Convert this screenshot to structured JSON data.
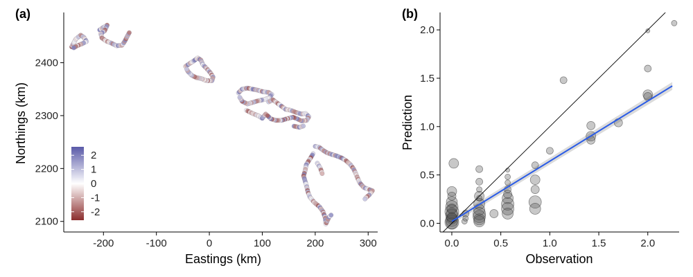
{
  "panel_a": {
    "label": "(a)",
    "chart_data": {
      "type": "scatter",
      "xlabel": "Eastings (km)",
      "ylabel": "Northings (km)",
      "xlim": [
        -275,
        318
      ],
      "ylim": [
        2080,
        2495
      ],
      "xticks": [
        -200,
        -100,
        0,
        100,
        200,
        300
      ],
      "xtick_labels": [
        "-200",
        "-100",
        "0",
        "100",
        "200",
        "300"
      ],
      "yticks": [
        2100,
        2200,
        2300,
        2400
      ],
      "ytick_labels": [
        "2100",
        "2200",
        "2300",
        "2400"
      ],
      "grid": false,
      "legend": {
        "position": "bottom-left",
        "ticks": [
          2,
          1,
          0,
          -1,
          -2
        ],
        "tick_labels": [
          "2",
          "1",
          "0",
          "-1",
          "-2"
        ],
        "range": [
          -2.6,
          2.6
        ],
        "low_color": "#8b2d2d",
        "mid_color": "#ffffff",
        "high_color": "#5a5aa8"
      },
      "tracks": [
        {
          "points": [
            [
              -260,
              2430
            ],
            [
              -252,
              2445
            ],
            [
              -243,
              2452
            ],
            [
              -237,
              2448
            ],
            [
              -232,
              2440
            ],
            [
              -240,
              2436
            ],
            [
              -250,
              2432
            ],
            [
              -258,
              2427
            ]
          ]
        },
        {
          "points": [
            [
              -207,
              2462
            ],
            [
              -200,
              2467
            ],
            [
              -193,
              2471
            ],
            [
              -198,
              2460
            ],
            [
              -205,
              2455
            ],
            [
              -203,
              2447
            ],
            [
              -195,
              2441
            ],
            [
              -185,
              2437
            ],
            [
              -175,
              2432
            ],
            [
              -165,
              2433
            ],
            [
              -160,
              2440
            ],
            [
              -155,
              2450
            ],
            [
              -150,
              2459
            ]
          ]
        },
        {
          "points": [
            [
              -45,
              2393
            ],
            [
              -38,
              2398
            ],
            [
              -30,
              2403
            ],
            [
              -22,
              2409
            ],
            [
              -16,
              2405
            ],
            [
              -12,
              2396
            ],
            [
              -5,
              2389
            ],
            [
              2,
              2381
            ],
            [
              7,
              2373
            ],
            [
              5,
              2366
            ],
            [
              -5,
              2366
            ],
            [
              -15,
              2370
            ],
            [
              -25,
              2372
            ],
            [
              -33,
              2376
            ],
            [
              -40,
              2383
            ],
            [
              -44,
              2390
            ]
          ]
        },
        {
          "points": [
            [
              55,
              2343
            ],
            [
              62,
              2350
            ],
            [
              72,
              2352
            ],
            [
              82,
              2350
            ],
            [
              92,
              2348
            ],
            [
              102,
              2345
            ],
            [
              112,
              2344
            ],
            [
              118,
              2340
            ],
            [
              112,
              2333
            ],
            [
              102,
              2330
            ],
            [
              92,
              2328
            ],
            [
              82,
              2325
            ],
            [
              72,
              2322
            ],
            [
              62,
              2327
            ],
            [
              56,
              2337
            ],
            [
              70,
              2310
            ],
            [
              82,
              2304
            ],
            [
              92,
              2300
            ],
            [
              100,
              2295
            ],
            [
              108,
              2305
            ]
          ]
        },
        {
          "points": [
            [
              112,
              2326
            ],
            [
              120,
              2330
            ],
            [
              128,
              2324
            ],
            [
              136,
              2318
            ],
            [
              144,
              2312
            ],
            [
              154,
              2310
            ],
            [
              164,
              2306
            ],
            [
              174,
              2303
            ],
            [
              182,
              2304
            ],
            [
              188,
              2298
            ],
            [
              184,
              2291
            ],
            [
              174,
              2290
            ],
            [
              166,
              2294
            ],
            [
              158,
              2297
            ],
            [
              146,
              2294
            ],
            [
              136,
              2291
            ],
            [
              126,
              2291
            ],
            [
              116,
              2294
            ],
            [
              108,
              2302
            ],
            [
              160,
              2280
            ],
            [
              170,
              2278
            ],
            [
              180,
              2281
            ]
          ]
        },
        {
          "points": [
            [
              200,
              2242
            ],
            [
              208,
              2240
            ],
            [
              214,
              2235
            ],
            [
              222,
              2230
            ],
            [
              230,
              2227
            ],
            [
              240,
              2224
            ],
            [
              250,
              2220
            ],
            [
              258,
              2215
            ],
            [
              266,
              2208
            ],
            [
              272,
              2200
            ],
            [
              276,
              2192
            ],
            [
              280,
              2182
            ],
            [
              284,
              2173
            ],
            [
              292,
              2164
            ],
            [
              300,
              2161
            ],
            [
              308,
              2158
            ],
            [
              302,
              2150
            ],
            [
              296,
              2145
            ],
            [
              292,
              2140
            ]
          ]
        },
        {
          "points": [
            [
              196,
              2228
            ],
            [
              190,
              2218
            ],
            [
              183,
              2207
            ],
            [
              181,
              2196
            ],
            [
              178,
              2186
            ],
            [
              181,
              2176
            ],
            [
              184,
              2166
            ],
            [
              186,
              2156
            ],
            [
              190,
              2146
            ],
            [
              198,
              2136
            ],
            [
              208,
              2128
            ],
            [
              215,
              2118
            ],
            [
              219,
              2106
            ],
            [
              220,
              2095
            ],
            [
              226,
              2108
            ],
            [
              232,
              2114
            ],
            [
              204,
              2210
            ],
            [
              210,
              2200
            ],
            [
              214,
              2188
            ]
          ]
        }
      ]
    }
  },
  "panel_b": {
    "label": "(b)",
    "chart_data": {
      "type": "scatter",
      "xlabel": "Observation",
      "ylabel": "Prediction",
      "xlim": [
        -0.12,
        2.32
      ],
      "ylim": [
        -0.09,
        2.18
      ],
      "xticks": [
        0,
        0.5,
        1,
        1.5,
        2
      ],
      "xtick_labels": [
        "0.0",
        "0.5",
        "1.0",
        "1.5",
        "2.0"
      ],
      "yticks": [
        0,
        0.5,
        1,
        1.5,
        2
      ],
      "ytick_labels": [
        "0.0",
        "0.5",
        "1.0",
        "1.5",
        "2.0"
      ],
      "grid": false,
      "identity_line": {
        "color": "#000000"
      },
      "fit_line": {
        "color": "#2b5ce6",
        "band_color": "#bdbdbd",
        "start": [
          0,
          0.02
        ],
        "end": [
          2.25,
          1.42
        ]
      },
      "points": [
        [
          0,
          0.22,
          8
        ],
        [
          0,
          0.33,
          7
        ],
        [
          0,
          0.28,
          6
        ],
        [
          0,
          0.17,
          9
        ],
        [
          0,
          0.12,
          10
        ],
        [
          0,
          0.08,
          9
        ],
        [
          0,
          0.05,
          8
        ],
        [
          0,
          0.03,
          9
        ],
        [
          0,
          0.01,
          10
        ],
        [
          0,
          0.0,
          8
        ],
        [
          0,
          0.15,
          7
        ],
        [
          0,
          0.1,
          8
        ],
        [
          0,
          0.06,
          7
        ],
        [
          0.28,
          0.56,
          5
        ],
        [
          0.28,
          0.43,
          5
        ],
        [
          0.28,
          0.28,
          7
        ],
        [
          0.28,
          0.2,
          8
        ],
        [
          0.28,
          0.14,
          8
        ],
        [
          0.28,
          0.1,
          9
        ],
        [
          0.28,
          0.07,
          9
        ],
        [
          0.28,
          0.04,
          8
        ],
        [
          0.28,
          0.02,
          8
        ],
        [
          0.28,
          0.35,
          4
        ],
        [
          0.28,
          0.26,
          4
        ],
        [
          0.14,
          0.1,
          5
        ],
        [
          0.14,
          0.05,
          4
        ],
        [
          0.02,
          0.62,
          7
        ],
        [
          0.13,
          0.02,
          4
        ],
        [
          0.57,
          0.55,
          3
        ],
        [
          0.57,
          0.48,
          4
        ],
        [
          0.57,
          0.42,
          4
        ],
        [
          0.57,
          0.35,
          5
        ],
        [
          0.57,
          0.26,
          8
        ],
        [
          0.57,
          0.2,
          9
        ],
        [
          0.57,
          0.15,
          9
        ],
        [
          0.57,
          0.1,
          8
        ],
        [
          0.57,
          0.3,
          6
        ],
        [
          0.43,
          0.1,
          6
        ],
        [
          0.85,
          0.6,
          5
        ],
        [
          0.85,
          0.45,
          7
        ],
        [
          0.85,
          0.35,
          6
        ],
        [
          0.85,
          0.22,
          9
        ],
        [
          0.85,
          0.15,
          8
        ],
        [
          1.0,
          0.75,
          5
        ],
        [
          1.14,
          1.48,
          5
        ],
        [
          1.42,
          1.01,
          6
        ],
        [
          1.42,
          0.9,
          7
        ],
        [
          1.42,
          0.86,
          6
        ],
        [
          1.7,
          1.04,
          6
        ],
        [
          2.0,
          1.99,
          3
        ],
        [
          2.0,
          1.6,
          5
        ],
        [
          2.0,
          1.33,
          7
        ],
        [
          2.0,
          1.31,
          6
        ],
        [
          2.27,
          2.07,
          4
        ]
      ]
    }
  }
}
